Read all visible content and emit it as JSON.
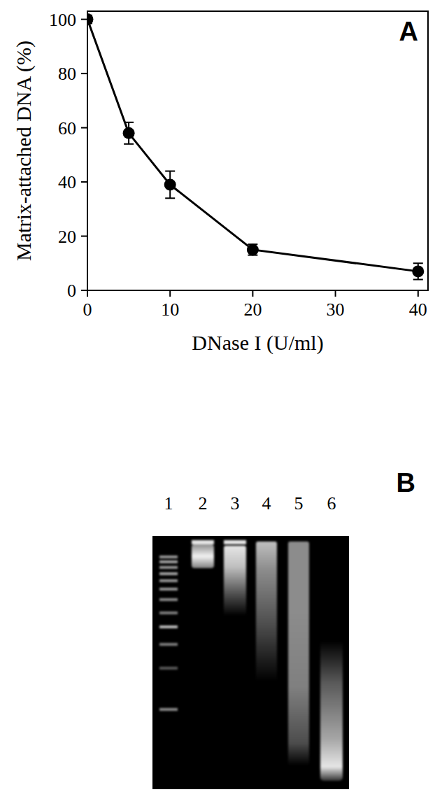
{
  "chart_data": {
    "type": "line",
    "x_label": "DNase I (U/ml)",
    "y_label": "Matrix-attached DNA (%)",
    "annotations": [
      "A"
    ],
    "x": [
      0,
      5,
      10,
      20,
      40
    ],
    "values": [
      100,
      58,
      39,
      15,
      7
    ],
    "errors": [
      1.5,
      4,
      5,
      2,
      3
    ],
    "color": "#000000",
    "marker": "circle",
    "line_style": "solid",
    "xlim": [
      0,
      41.2
    ],
    "xticks": [
      0,
      10,
      20,
      30,
      40
    ],
    "ylim": [
      0,
      103
    ],
    "yticks": [
      0,
      20,
      40,
      60,
      80,
      100
    ],
    "grid": false
  },
  "gel": {
    "panel_label": "B",
    "lanes": [
      "1",
      "2",
      "3",
      "4",
      "5",
      "6"
    ]
  }
}
